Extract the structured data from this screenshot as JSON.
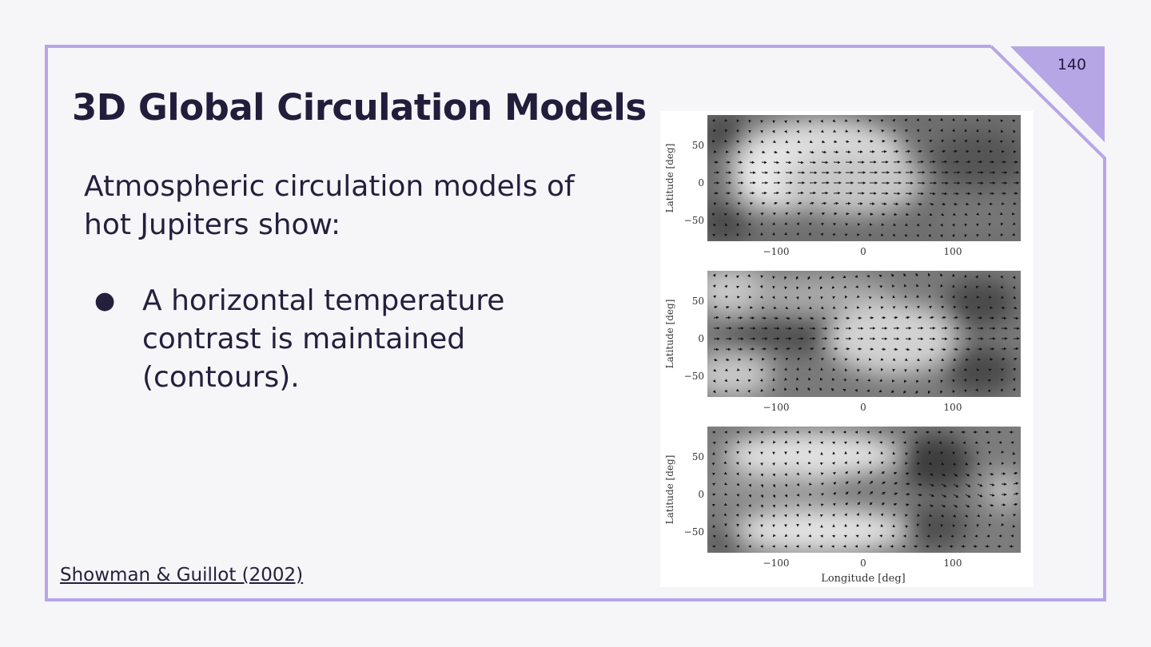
{
  "slide": {
    "title": "3D Global Circulation Models",
    "page_number": "140",
    "intro": "Atmospheric circulation models of hot Jupiters show:",
    "bullets": [
      {
        "text": "A horizontal temperature contrast is maintained (contours).",
        "marker": "●"
      }
    ],
    "citation": "Showman & Guillot (2002)"
  },
  "colors": {
    "background": "#f6f5f8",
    "accent": "#b7a6e6",
    "text": "#241f3c"
  },
  "figure": {
    "axis": {
      "x_label": "Longitude [deg]",
      "y_label": "Latitude [deg]",
      "x_ticks": [
        "−100",
        "0",
        "100"
      ],
      "y_ticks": [
        "50",
        "0",
        "−50"
      ]
    },
    "panels": [
      {
        "name": "top"
      },
      {
        "name": "middle"
      },
      {
        "name": "bottom"
      }
    ]
  }
}
